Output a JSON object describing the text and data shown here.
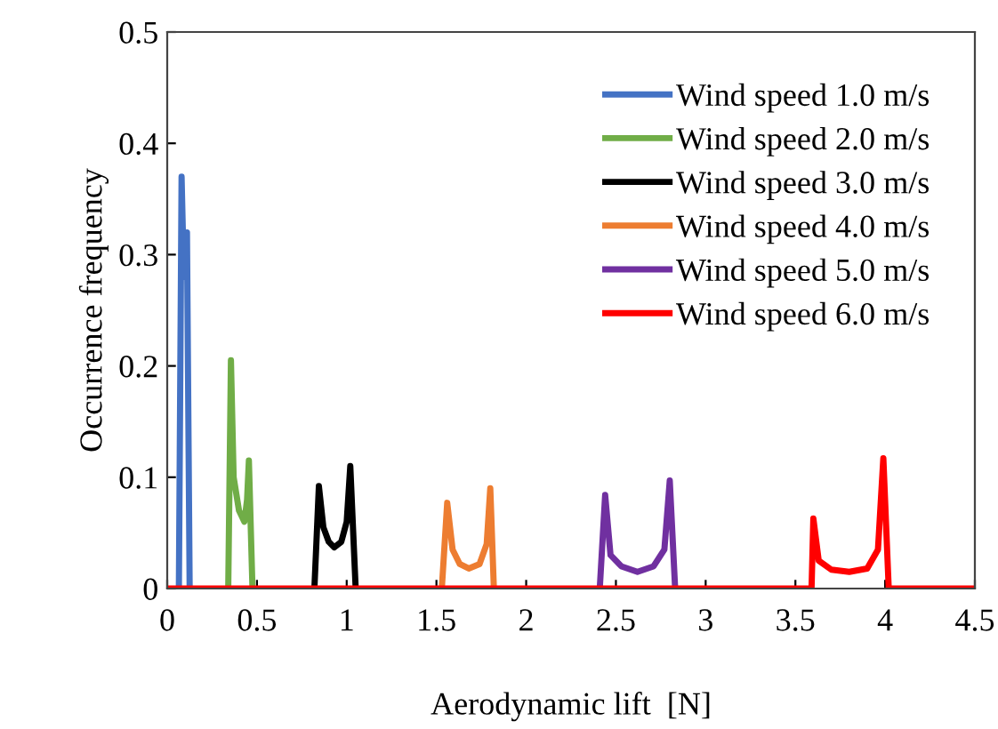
{
  "chart_data": {
    "type": "line",
    "xlabel": "Aerodynamic lift  [N]",
    "ylabel": "Occurrence frequency",
    "xlim": [
      0,
      4.5
    ],
    "ylim": [
      0,
      0.5
    ],
    "xticks": [
      0,
      0.5,
      1,
      1.5,
      2,
      2.5,
      3,
      3.5,
      4,
      4.5
    ],
    "yticks": [
      0,
      0.1,
      0.2,
      0.3,
      0.4,
      0.5
    ],
    "legend": "top right",
    "grid": false,
    "marker": "none",
    "line_style": "solid",
    "series": [
      {
        "name": "Wind speed 1.0 m/s",
        "color": "#4472c4",
        "x": [
          0.065,
          0.08,
          0.09,
          0.1,
          0.11,
          0.125
        ],
        "values": [
          0,
          0.37,
          0.3,
          0.28,
          0.32,
          0
        ]
      },
      {
        "name": "Wind speed 2.0 m/s",
        "color": "#70ad47",
        "x": [
          0.34,
          0.355,
          0.37,
          0.4,
          0.43,
          0.445,
          0.455,
          0.475
        ],
        "values": [
          0,
          0.205,
          0.1,
          0.07,
          0.06,
          0.08,
          0.115,
          0
        ]
      },
      {
        "name": "Wind speed 3.0 m/s",
        "color": "#000000",
        "x": [
          0.82,
          0.845,
          0.87,
          0.9,
          0.93,
          0.97,
          1.0,
          1.02,
          1.05
        ],
        "values": [
          0,
          0.092,
          0.055,
          0.042,
          0.037,
          0.042,
          0.06,
          0.11,
          0
        ]
      },
      {
        "name": "Wind speed 4.0 m/s",
        "color": "#ed7d31",
        "x": [
          1.53,
          1.56,
          1.59,
          1.63,
          1.68,
          1.74,
          1.78,
          1.8,
          1.82
        ],
        "values": [
          0,
          0.077,
          0.035,
          0.022,
          0.018,
          0.022,
          0.04,
          0.09,
          0
        ]
      },
      {
        "name": "Wind speed 5.0 m/s",
        "color": "#7030a0",
        "x": [
          2.41,
          2.44,
          2.47,
          2.53,
          2.62,
          2.71,
          2.77,
          2.8,
          2.83
        ],
        "values": [
          0,
          0.084,
          0.03,
          0.02,
          0.015,
          0.02,
          0.035,
          0.097,
          0
        ]
      },
      {
        "name": "Wind speed 6.0 m/s",
        "color": "#ff0000",
        "x": [
          0,
          3.59,
          3.6,
          3.63,
          3.7,
          3.8,
          3.9,
          3.96,
          3.99,
          4.02,
          4.5
        ],
        "values": [
          0,
          0,
          0.063,
          0.025,
          0.017,
          0.015,
          0.018,
          0.035,
          0.117,
          0,
          0
        ]
      }
    ]
  }
}
